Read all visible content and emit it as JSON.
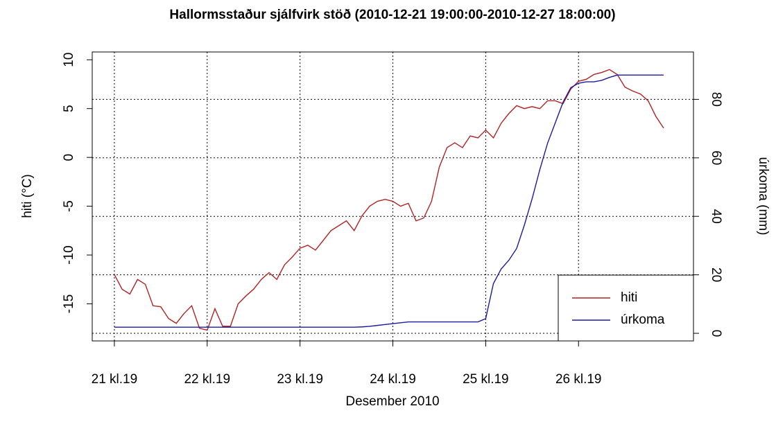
{
  "chart_data": {
    "type": "line",
    "title": "Hallormsstaður sjálfvirk stöð (2010-12-21 19:00:00-2010-12-27 18:00:00)",
    "xlabel": "Desember 2010",
    "ylabel": "hiti (°C)",
    "y2label": "úrkoma (mm)",
    "x": [
      0,
      2,
      4,
      6,
      8,
      10,
      12,
      14,
      16,
      18,
      20,
      22,
      24,
      26,
      28,
      30,
      32,
      34,
      36,
      38,
      40,
      42,
      44,
      46,
      48,
      50,
      52,
      54,
      56,
      58,
      60,
      62,
      64,
      66,
      68,
      70,
      72,
      74,
      76,
      78,
      80,
      82,
      84,
      86,
      88,
      90,
      92,
      94,
      96,
      98,
      100,
      102,
      104,
      106,
      108,
      110,
      112,
      114,
      116,
      118,
      120,
      122,
      124,
      126,
      128,
      130,
      132,
      134,
      136,
      138,
      140,
      142
    ],
    "xlim": [
      -5.72,
      149.72
    ],
    "xticks": [
      {
        "value": 0,
        "label": "21 kl.19"
      },
      {
        "value": 24,
        "label": "22 kl.19"
      },
      {
        "value": 48,
        "label": "23 kl.19"
      },
      {
        "value": 72,
        "label": "24 kl.19"
      },
      {
        "value": 96,
        "label": "25 kl.19"
      },
      {
        "value": 120,
        "label": "26 kl.19"
      }
    ],
    "ylim": [
      -18.8,
      10.8
    ],
    "yticks": [
      -15,
      -10,
      -5,
      0,
      5,
      10
    ],
    "y2lim": [
      -2.6,
      96.2
    ],
    "y2ticks": [
      0,
      20,
      40,
      60,
      80
    ],
    "grid": true,
    "legend": "bottom-right",
    "series": [
      {
        "name": "hiti",
        "color": "#b22222",
        "values": [
          -12,
          -13.5,
          -14,
          -12.5,
          -13,
          -15.2,
          -15.3,
          -16.5,
          -17,
          -16,
          -15.2,
          -17.5,
          -17.7,
          -15.5,
          -17.3,
          -17.3,
          -15,
          -14.2,
          -13.5,
          -12.5,
          -11.8,
          -12.5,
          -11,
          -10.2,
          -9.3,
          -9,
          -9.5,
          -8.5,
          -7.5,
          -7,
          -6.5,
          -7.5,
          -6,
          -5,
          -4.5,
          -4.3,
          -4.5,
          -5,
          -4.7,
          -6.5,
          -6.2,
          -4.5,
          -1,
          1,
          1.5,
          1,
          2.2,
          2,
          2.8,
          2,
          3.5,
          4.5,
          5.3,
          5,
          5.2,
          5,
          5.8,
          5.8,
          5.5,
          7,
          7.8,
          8,
          8.5,
          8.7,
          9,
          8.5,
          7.2,
          6.8,
          6.5,
          5.8,
          4.2,
          3
        ]
      },
      {
        "name": "úrkoma",
        "color": "#1a1aa0",
        "axis": "y2",
        "values": [
          2.1,
          2.1,
          2.1,
          2.1,
          2.1,
          2.1,
          2.1,
          2.1,
          2.1,
          2.1,
          2.1,
          2.1,
          2.1,
          2.1,
          2.1,
          2.1,
          2.1,
          2.1,
          2.1,
          2.1,
          2.1,
          2.1,
          2.1,
          2.1,
          2.1,
          2.1,
          2.1,
          2.1,
          2.1,
          2.1,
          2.1,
          2.1,
          2.2,
          2.4,
          2.7,
          3,
          3.3,
          3.6,
          3.9,
          3.9,
          3.9,
          3.9,
          3.9,
          3.9,
          3.9,
          3.9,
          3.9,
          3.9,
          5,
          17,
          22,
          25,
          29,
          37,
          46,
          56,
          65,
          72,
          79,
          84,
          85.5,
          86,
          86,
          86.5,
          87.5,
          88.3,
          88.3,
          88.3,
          88.3,
          88.3,
          88.3,
          88.3
        ]
      }
    ]
  }
}
